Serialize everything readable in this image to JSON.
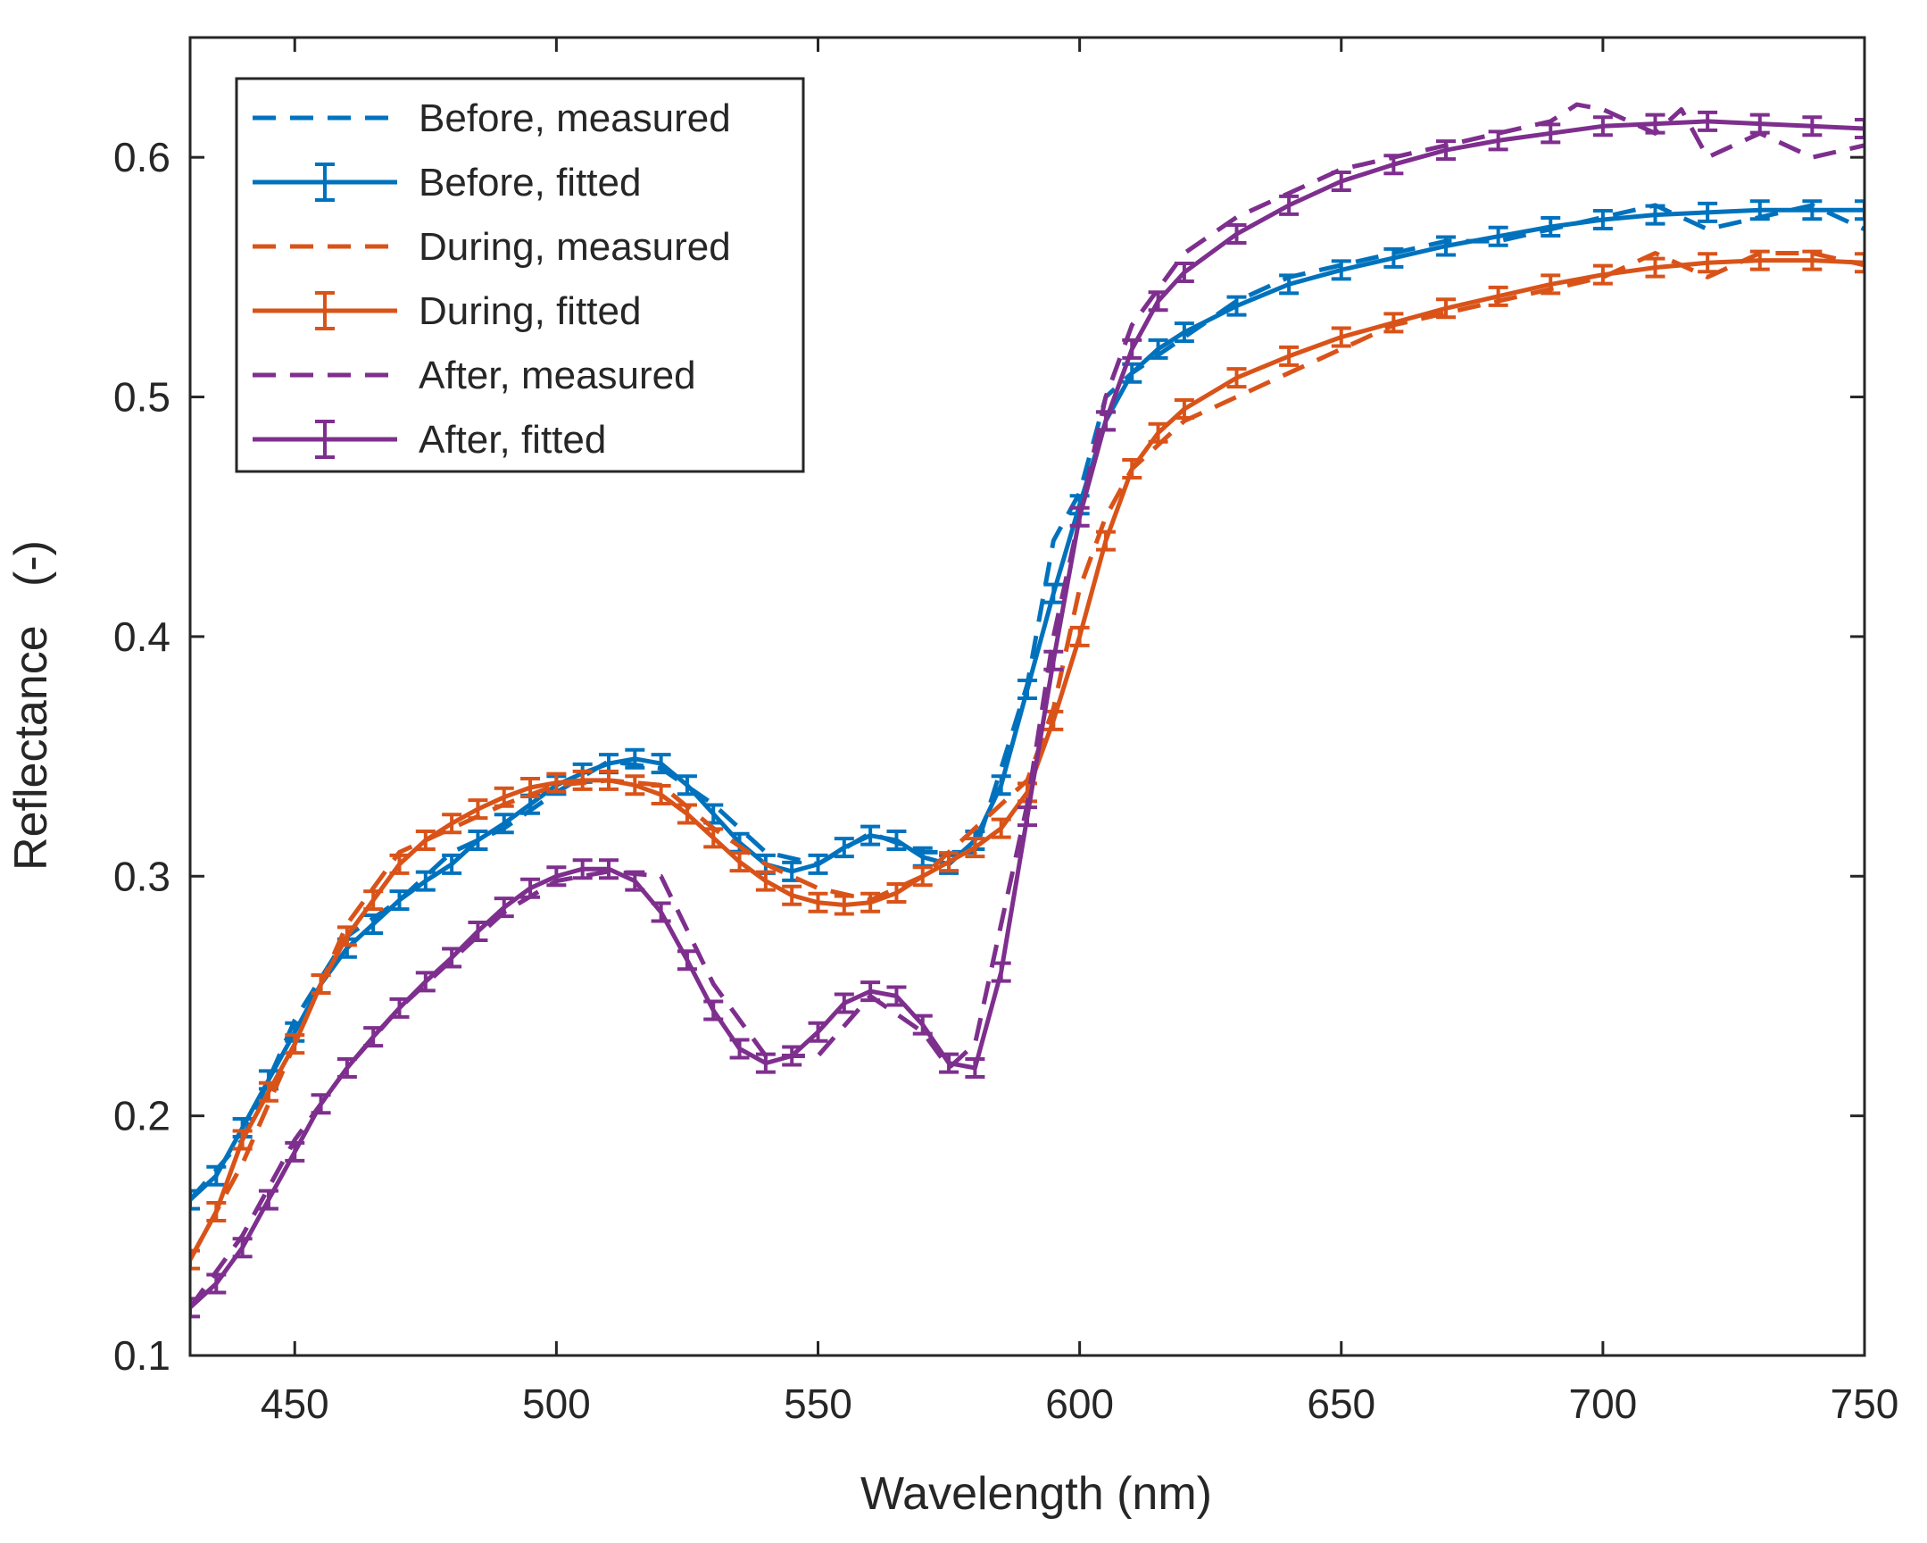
{
  "chart_data": {
    "type": "line",
    "title": "",
    "xlabel": "Wavelength (nm)",
    "ylabel": "Reflectance   (-)",
    "xlim": [
      430,
      750
    ],
    "ylim": [
      0.1,
      0.65
    ],
    "xticks": [
      450,
      500,
      550,
      600,
      650,
      700,
      750
    ],
    "yticks": [
      0.1,
      0.2,
      0.3,
      0.4,
      0.5,
      0.6
    ],
    "xtick_labels": [
      "450",
      "500",
      "550",
      "600",
      "650",
      "700",
      "750"
    ],
    "ytick_labels": [
      "0.1",
      "0.2",
      "0.3",
      "0.4",
      "0.5",
      "0.6"
    ],
    "grid": false,
    "legend_position": "top-left",
    "series": [
      {
        "name": "Before, measured",
        "color": "#0072BD",
        "style": "dashed",
        "x": [
          430,
          440,
          450,
          460,
          470,
          480,
          490,
          500,
          510,
          520,
          530,
          540,
          550,
          560,
          570,
          580,
          590,
          595,
          600,
          605,
          610,
          620,
          630,
          640,
          650,
          660,
          670,
          680,
          690,
          700,
          710,
          720,
          730,
          740,
          750
        ],
        "y": [
          0.165,
          0.19,
          0.24,
          0.275,
          0.29,
          0.31,
          0.32,
          0.335,
          0.348,
          0.345,
          0.33,
          0.31,
          0.305,
          0.318,
          0.31,
          0.31,
          0.38,
          0.44,
          0.46,
          0.5,
          0.51,
          0.525,
          0.54,
          0.55,
          0.555,
          0.56,
          0.565,
          0.565,
          0.57,
          0.575,
          0.58,
          0.57,
          0.575,
          0.58,
          0.57
        ]
      },
      {
        "name": "Before, fitted",
        "color": "#0072BD",
        "style": "solid",
        "x": [
          430,
          435,
          440,
          445,
          450,
          455,
          460,
          465,
          470,
          475,
          480,
          485,
          490,
          495,
          500,
          505,
          510,
          515,
          520,
          525,
          530,
          535,
          540,
          545,
          550,
          555,
          560,
          565,
          570,
          575,
          580,
          585,
          590,
          595,
          600,
          605,
          610,
          615,
          620,
          630,
          640,
          650,
          660,
          670,
          680,
          690,
          700,
          710,
          720,
          730,
          740,
          750
        ],
        "y": [
          0.165,
          0.175,
          0.195,
          0.215,
          0.235,
          0.255,
          0.27,
          0.28,
          0.29,
          0.298,
          0.305,
          0.315,
          0.322,
          0.33,
          0.338,
          0.343,
          0.347,
          0.349,
          0.347,
          0.338,
          0.326,
          0.314,
          0.305,
          0.302,
          0.305,
          0.312,
          0.317,
          0.315,
          0.308,
          0.305,
          0.315,
          0.338,
          0.378,
          0.418,
          0.455,
          0.49,
          0.51,
          0.52,
          0.527,
          0.538,
          0.547,
          0.553,
          0.558,
          0.563,
          0.567,
          0.571,
          0.574,
          0.576,
          0.577,
          0.578,
          0.578,
          0.578
        ]
      },
      {
        "name": "During, measured",
        "color": "#D95319",
        "style": "dashed",
        "x": [
          430,
          440,
          450,
          460,
          470,
          480,
          490,
          500,
          510,
          520,
          530,
          540,
          550,
          560,
          570,
          580,
          590,
          595,
          600,
          605,
          610,
          620,
          630,
          640,
          650,
          660,
          670,
          680,
          690,
          700,
          710,
          720,
          730,
          740,
          750
        ],
        "y": [
          0.14,
          0.18,
          0.23,
          0.28,
          0.31,
          0.32,
          0.33,
          0.338,
          0.34,
          0.338,
          0.32,
          0.305,
          0.295,
          0.29,
          0.3,
          0.32,
          0.34,
          0.37,
          0.42,
          0.45,
          0.47,
          0.49,
          0.5,
          0.51,
          0.52,
          0.53,
          0.535,
          0.54,
          0.545,
          0.55,
          0.56,
          0.55,
          0.56,
          0.56,
          0.555
        ]
      },
      {
        "name": "During, fitted",
        "color": "#D95319",
        "style": "solid",
        "x": [
          430,
          435,
          440,
          445,
          450,
          455,
          460,
          465,
          470,
          475,
          480,
          485,
          490,
          495,
          500,
          505,
          510,
          515,
          520,
          525,
          530,
          535,
          540,
          545,
          550,
          555,
          560,
          565,
          570,
          575,
          580,
          585,
          590,
          595,
          600,
          605,
          610,
          615,
          620,
          630,
          640,
          650,
          660,
          670,
          680,
          690,
          700,
          710,
          720,
          730,
          740,
          750
        ],
        "y": [
          0.14,
          0.16,
          0.19,
          0.21,
          0.23,
          0.255,
          0.275,
          0.29,
          0.305,
          0.315,
          0.322,
          0.328,
          0.333,
          0.337,
          0.339,
          0.34,
          0.34,
          0.338,
          0.334,
          0.326,
          0.316,
          0.306,
          0.298,
          0.292,
          0.289,
          0.288,
          0.289,
          0.293,
          0.3,
          0.306,
          0.312,
          0.32,
          0.335,
          0.365,
          0.4,
          0.44,
          0.47,
          0.485,
          0.495,
          0.508,
          0.517,
          0.525,
          0.531,
          0.537,
          0.542,
          0.547,
          0.551,
          0.554,
          0.556,
          0.557,
          0.557,
          0.556
        ]
      },
      {
        "name": "After, measured",
        "color": "#7E2F8E",
        "style": "dashed",
        "x": [
          430,
          440,
          450,
          460,
          470,
          480,
          490,
          500,
          510,
          520,
          530,
          540,
          550,
          560,
          570,
          575,
          580,
          590,
          595,
          600,
          605,
          610,
          620,
          630,
          640,
          650,
          660,
          670,
          680,
          690,
          695,
          700,
          710,
          715,
          720,
          730,
          740,
          750
        ],
        "y": [
          0.12,
          0.15,
          0.19,
          0.22,
          0.245,
          0.265,
          0.285,
          0.298,
          0.302,
          0.3,
          0.255,
          0.225,
          0.225,
          0.25,
          0.235,
          0.22,
          0.23,
          0.33,
          0.4,
          0.45,
          0.5,
          0.53,
          0.56,
          0.575,
          0.585,
          0.595,
          0.6,
          0.605,
          0.61,
          0.615,
          0.622,
          0.62,
          0.61,
          0.62,
          0.6,
          0.61,
          0.6,
          0.605
        ]
      },
      {
        "name": "After, fitted",
        "color": "#7E2F8E",
        "style": "solid",
        "x": [
          430,
          435,
          440,
          445,
          450,
          455,
          460,
          465,
          470,
          475,
          480,
          485,
          490,
          495,
          500,
          505,
          510,
          515,
          520,
          525,
          530,
          535,
          540,
          545,
          550,
          555,
          560,
          565,
          570,
          575,
          580,
          585,
          590,
          595,
          600,
          605,
          610,
          615,
          620,
          630,
          640,
          650,
          660,
          670,
          680,
          690,
          700,
          710,
          720,
          730,
          740,
          750
        ],
        "y": [
          0.12,
          0.13,
          0.145,
          0.165,
          0.185,
          0.205,
          0.22,
          0.233,
          0.245,
          0.256,
          0.266,
          0.277,
          0.287,
          0.295,
          0.3,
          0.303,
          0.303,
          0.298,
          0.285,
          0.265,
          0.244,
          0.228,
          0.222,
          0.225,
          0.235,
          0.247,
          0.252,
          0.25,
          0.238,
          0.222,
          0.22,
          0.26,
          0.325,
          0.39,
          0.45,
          0.49,
          0.52,
          0.54,
          0.552,
          0.568,
          0.58,
          0.59,
          0.597,
          0.603,
          0.607,
          0.61,
          0.613,
          0.614,
          0.615,
          0.614,
          0.613,
          0.612
        ]
      }
    ]
  }
}
